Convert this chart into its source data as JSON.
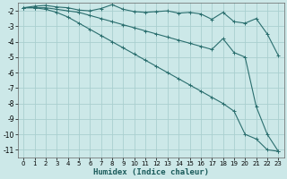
{
  "xlabel": "Humidex (Indice chaleur)",
  "bg_color": "#cce8e8",
  "grid_color": "#aacfcf",
  "line_color": "#2a6e6e",
  "xlim": [
    -0.5,
    23.5
  ],
  "ylim": [
    -11.5,
    -1.5
  ],
  "yticks": [
    -2,
    -3,
    -4,
    -5,
    -6,
    -7,
    -8,
    -9,
    -10,
    -11
  ],
  "xticks": [
    0,
    1,
    2,
    3,
    4,
    5,
    6,
    7,
    8,
    9,
    10,
    11,
    12,
    13,
    14,
    15,
    16,
    17,
    18,
    19,
    20,
    21,
    22,
    23
  ],
  "line1_x": [
    0,
    1,
    2,
    3,
    4,
    5,
    6,
    7,
    8,
    9,
    10,
    11,
    12,
    13,
    14,
    15,
    16,
    17,
    18,
    19,
    20,
    21,
    22,
    23
  ],
  "line1_y": [
    -1.8,
    -1.7,
    -1.65,
    -1.75,
    -1.8,
    -1.95,
    -2.0,
    -1.85,
    -1.6,
    -1.9,
    -2.05,
    -2.1,
    -2.05,
    -2.0,
    -2.15,
    -2.1,
    -2.2,
    -2.55,
    -2.1,
    -2.7,
    -2.8,
    -2.5,
    -3.5,
    -4.9
  ],
  "line2_x": [
    0,
    1,
    2,
    3,
    4,
    5,
    6,
    7,
    8,
    9,
    10,
    11,
    12,
    13,
    14,
    15,
    16,
    17,
    18,
    19,
    20,
    21,
    22,
    23
  ],
  "line2_y": [
    -1.8,
    -1.8,
    -1.8,
    -1.9,
    -2.0,
    -2.1,
    -2.3,
    -2.5,
    -2.7,
    -2.9,
    -3.1,
    -3.3,
    -3.5,
    -3.7,
    -3.9,
    -4.1,
    -4.3,
    -4.5,
    -3.8,
    -4.7,
    -5.0,
    -8.2,
    -10.0,
    -11.1
  ],
  "line3_x": [
    0,
    1,
    2,
    3,
    4,
    5,
    6,
    7,
    8,
    9,
    10,
    11,
    12,
    13,
    14,
    15,
    16,
    17,
    18,
    19,
    20,
    21,
    22,
    23
  ],
  "line3_y": [
    -1.8,
    -1.8,
    -1.9,
    -2.1,
    -2.4,
    -2.8,
    -3.2,
    -3.6,
    -4.0,
    -4.4,
    -4.8,
    -5.2,
    -5.6,
    -6.0,
    -6.4,
    -6.8,
    -7.2,
    -7.6,
    -8.0,
    -8.5,
    -10.0,
    -10.3,
    -11.0,
    -11.1
  ]
}
